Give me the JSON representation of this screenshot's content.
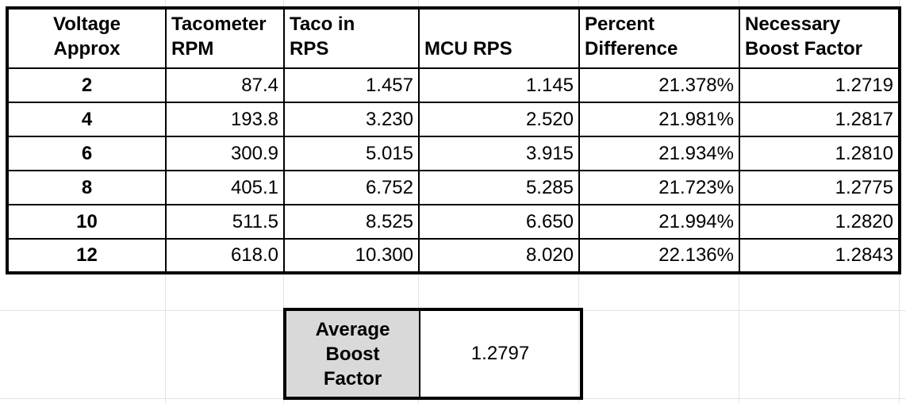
{
  "table": {
    "headers": [
      {
        "line1": "Voltage",
        "line2": "Approx"
      },
      {
        "line1": "Tacometer",
        "line2": "RPM"
      },
      {
        "line1": "Taco in",
        "line2": "RPS"
      },
      {
        "line1": "",
        "line2": "MCU RPS"
      },
      {
        "line1": "Percent",
        "line2": "Difference"
      },
      {
        "line1": "Necessary",
        "line2": "Boost Factor"
      }
    ],
    "rows": [
      [
        "2",
        "87.4",
        "1.457",
        "1.145",
        "21.378%",
        "1.2719"
      ],
      [
        "4",
        "193.8",
        "3.230",
        "2.520",
        "21.981%",
        "1.2817"
      ],
      [
        "6",
        "300.9",
        "5.015",
        "3.915",
        "21.934%",
        "1.2810"
      ],
      [
        "8",
        "405.1",
        "6.752",
        "5.285",
        "21.723%",
        "1.2775"
      ],
      [
        "10",
        "511.5",
        "8.525",
        "6.650",
        "21.994%",
        "1.2820"
      ],
      [
        "12",
        "618.0",
        "10.300",
        "8.020",
        "22.136%",
        "1.2843"
      ]
    ]
  },
  "average": {
    "label_lines": [
      "Average",
      "Boost",
      "Factor"
    ],
    "value": "1.2797"
  },
  "colors": {
    "gridline": "#e2e3e3",
    "label_fill": "#d9d9d9"
  }
}
